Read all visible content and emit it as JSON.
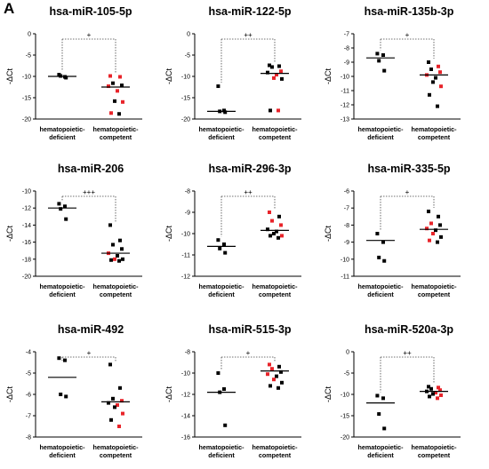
{
  "panel_label": "A",
  "chart_data": [
    {
      "type": "scatter",
      "title": "hsa-miR-105-5p",
      "ylabel": "-ΔCt",
      "ylim": [
        -20,
        0
      ],
      "yticks": [
        0,
        -5,
        -10,
        -15,
        -20
      ],
      "categories": [
        "hematopoietic-\ndeficient",
        "hematopoietic-\ncompetent"
      ],
      "significance": "+",
      "groups": [
        {
          "mean": -10.0,
          "points": [
            {
              "y": -9.6,
              "c": "black"
            },
            {
              "y": -10.1,
              "c": "black"
            },
            {
              "y": -9.9,
              "c": "black"
            },
            {
              "y": -10.3,
              "c": "black"
            }
          ]
        },
        {
          "mean": -12.5,
          "points": [
            {
              "y": -9.9,
              "c": "red"
            },
            {
              "y": -10.1,
              "c": "red"
            },
            {
              "y": -11.6,
              "c": "black"
            },
            {
              "y": -12.1,
              "c": "black"
            },
            {
              "y": -12.3,
              "c": "red"
            },
            {
              "y": -13.4,
              "c": "red"
            },
            {
              "y": -15.8,
              "c": "black"
            },
            {
              "y": -16.0,
              "c": "red"
            },
            {
              "y": -18.6,
              "c": "red"
            },
            {
              "y": -18.8,
              "c": "black"
            }
          ]
        }
      ]
    },
    {
      "type": "scatter",
      "title": "hsa-miR-122-5p",
      "ylabel": "-ΔCt",
      "ylim": [
        -20,
        0
      ],
      "yticks": [
        0,
        -5,
        -10,
        -15,
        -20
      ],
      "categories": [
        "hematopoietic-\ndeficient",
        "hematopoietic-\ncompetent"
      ],
      "significance": "++",
      "groups": [
        {
          "mean": -18.2,
          "points": [
            {
              "y": -12.3,
              "c": "black"
            },
            {
              "y": -18.0,
              "c": "black"
            },
            {
              "y": -18.2,
              "c": "black"
            },
            {
              "y": -18.4,
              "c": "black"
            }
          ]
        },
        {
          "mean": -9.3,
          "points": [
            {
              "y": -7.4,
              "c": "black"
            },
            {
              "y": -7.6,
              "c": "black"
            },
            {
              "y": -7.8,
              "c": "black"
            },
            {
              "y": -8.8,
              "c": "red"
            },
            {
              "y": -9.1,
              "c": "black"
            },
            {
              "y": -9.6,
              "c": "red"
            },
            {
              "y": -10.4,
              "c": "red"
            },
            {
              "y": -10.6,
              "c": "black"
            },
            {
              "y": -18.0,
              "c": "black"
            },
            {
              "y": -18.0,
              "c": "red"
            }
          ]
        }
      ]
    },
    {
      "type": "scatter",
      "title": "hsa-miR-135b-3p",
      "ylabel": "-ΔCt",
      "ylim": [
        -13,
        -7
      ],
      "yticks": [
        -7,
        -8,
        -9,
        -10,
        -11,
        -12,
        -13
      ],
      "categories": [
        "hematopoietic-\ndeficient",
        "hematopoietic-\ncompetent"
      ],
      "significance": "+",
      "groups": [
        {
          "mean": -8.7,
          "points": [
            {
              "y": -8.4,
              "c": "black"
            },
            {
              "y": -8.5,
              "c": "black"
            },
            {
              "y": -8.9,
              "c": "black"
            },
            {
              "y": -9.6,
              "c": "black"
            }
          ]
        },
        {
          "mean": -9.9,
          "points": [
            {
              "y": -9.0,
              "c": "black"
            },
            {
              "y": -9.3,
              "c": "red"
            },
            {
              "y": -9.5,
              "c": "black"
            },
            {
              "y": -9.7,
              "c": "red"
            },
            {
              "y": -9.9,
              "c": "red"
            },
            {
              "y": -10.1,
              "c": "black"
            },
            {
              "y": -10.4,
              "c": "black"
            },
            {
              "y": -10.7,
              "c": "red"
            },
            {
              "y": -11.3,
              "c": "black"
            },
            {
              "y": -12.1,
              "c": "black"
            }
          ]
        }
      ]
    },
    {
      "type": "scatter",
      "title": "hsa-miR-206",
      "ylabel": "-ΔCt",
      "ylim": [
        -20,
        -10
      ],
      "yticks": [
        -10,
        -12,
        -14,
        -16,
        -18,
        -20
      ],
      "categories": [
        "hematopoietic-\ndeficient",
        "hematopoietic-\ncompetent"
      ],
      "significance": "+++",
      "groups": [
        {
          "mean": -12.0,
          "points": [
            {
              "y": -11.5,
              "c": "black"
            },
            {
              "y": -11.8,
              "c": "black"
            },
            {
              "y": -12.1,
              "c": "black"
            },
            {
              "y": -13.3,
              "c": "black"
            }
          ]
        },
        {
          "mean": -17.3,
          "points": [
            {
              "y": -14.0,
              "c": "black"
            },
            {
              "y": -15.8,
              "c": "black"
            },
            {
              "y": -16.3,
              "c": "black"
            },
            {
              "y": -16.8,
              "c": "black"
            },
            {
              "y": -17.3,
              "c": "red"
            },
            {
              "y": -17.6,
              "c": "black"
            },
            {
              "y": -18.0,
              "c": "red"
            },
            {
              "y": -18.0,
              "c": "black"
            },
            {
              "y": -18.1,
              "c": "black"
            },
            {
              "y": -18.2,
              "c": "black"
            }
          ]
        }
      ]
    },
    {
      "type": "scatter",
      "title": "hsa-miR-296-3p",
      "ylabel": "-ΔCt",
      "ylim": [
        -12,
        -8
      ],
      "yticks": [
        -8,
        -9,
        -10,
        -11,
        -12
      ],
      "categories": [
        "hematopoietic-\ndeficient",
        "hematopoietic-\ncompetent"
      ],
      "significance": "++",
      "groups": [
        {
          "mean": -10.6,
          "points": [
            {
              "y": -10.3,
              "c": "black"
            },
            {
              "y": -10.5,
              "c": "black"
            },
            {
              "y": -10.7,
              "c": "black"
            },
            {
              "y": -10.9,
              "c": "black"
            }
          ]
        },
        {
          "mean": -9.85,
          "points": [
            {
              "y": -9.0,
              "c": "red"
            },
            {
              "y": -9.2,
              "c": "black"
            },
            {
              "y": -9.4,
              "c": "red"
            },
            {
              "y": -9.6,
              "c": "red"
            },
            {
              "y": -9.8,
              "c": "black"
            },
            {
              "y": -9.9,
              "c": "black"
            },
            {
              "y": -10.0,
              "c": "black"
            },
            {
              "y": -10.1,
              "c": "red"
            },
            {
              "y": -10.1,
              "c": "black"
            },
            {
              "y": -10.2,
              "c": "black"
            }
          ]
        }
      ]
    },
    {
      "type": "scatter",
      "title": "hsa-miR-335-5p",
      "ylabel": "-ΔCt",
      "ylim": [
        -11,
        -6
      ],
      "yticks": [
        -6,
        -7,
        -8,
        -9,
        -10,
        -11
      ],
      "categories": [
        "hematopoietic-\ndeficient",
        "hematopoietic-\ncompetent"
      ],
      "significance": "+",
      "groups": [
        {
          "mean": -8.9,
          "points": [
            {
              "y": -8.5,
              "c": "black"
            },
            {
              "y": -9.0,
              "c": "black"
            },
            {
              "y": -9.9,
              "c": "black"
            },
            {
              "y": -10.1,
              "c": "black"
            }
          ]
        },
        {
          "mean": -8.25,
          "points": [
            {
              "y": -7.2,
              "c": "black"
            },
            {
              "y": -7.5,
              "c": "black"
            },
            {
              "y": -7.9,
              "c": "red"
            },
            {
              "y": -8.0,
              "c": "black"
            },
            {
              "y": -8.2,
              "c": "red"
            },
            {
              "y": -8.3,
              "c": "black"
            },
            {
              "y": -8.5,
              "c": "red"
            },
            {
              "y": -8.7,
              "c": "black"
            },
            {
              "y": -8.9,
              "c": "red"
            },
            {
              "y": -9.0,
              "c": "black"
            }
          ]
        }
      ]
    },
    {
      "type": "scatter",
      "title": "hsa-miR-492",
      "ylabel": "-ΔCt",
      "ylim": [
        -8,
        -4
      ],
      "yticks": [
        -4,
        -5,
        -6,
        -7,
        -8
      ],
      "categories": [
        "hematopoietic-\ndeficient",
        "hematopoietic-\ncompetent"
      ],
      "significance": "+",
      "groups": [
        {
          "mean": -5.2,
          "points": [
            {
              "y": -4.3,
              "c": "black"
            },
            {
              "y": -4.4,
              "c": "black"
            },
            {
              "y": -6.0,
              "c": "black"
            },
            {
              "y": -6.1,
              "c": "black"
            }
          ]
        },
        {
          "mean": -6.35,
          "points": [
            {
              "y": -4.6,
              "c": "black"
            },
            {
              "y": -5.7,
              "c": "black"
            },
            {
              "y": -6.2,
              "c": "black"
            },
            {
              "y": -6.3,
              "c": "red"
            },
            {
              "y": -6.4,
              "c": "black"
            },
            {
              "y": -6.5,
              "c": "red"
            },
            {
              "y": -6.6,
              "c": "black"
            },
            {
              "y": -6.9,
              "c": "red"
            },
            {
              "y": -7.2,
              "c": "black"
            },
            {
              "y": -7.5,
              "c": "red"
            }
          ]
        }
      ]
    },
    {
      "type": "scatter",
      "title": "hsa-miR-515-3p",
      "ylabel": "-ΔCt",
      "ylim": [
        -16,
        -8
      ],
      "yticks": [
        -8,
        -10,
        -12,
        -14,
        -16
      ],
      "categories": [
        "hematopoietic-\ndeficient",
        "hematopoietic-\ncompetent"
      ],
      "significance": "+",
      "groups": [
        {
          "mean": -11.8,
          "points": [
            {
              "y": -10.0,
              "c": "black"
            },
            {
              "y": -11.5,
              "c": "black"
            },
            {
              "y": -11.8,
              "c": "black"
            },
            {
              "y": -14.9,
              "c": "black"
            }
          ]
        },
        {
          "mean": -9.8,
          "points": [
            {
              "y": -9.2,
              "c": "red"
            },
            {
              "y": -9.4,
              "c": "black"
            },
            {
              "y": -9.6,
              "c": "red"
            },
            {
              "y": -9.9,
              "c": "black"
            },
            {
              "y": -10.1,
              "c": "red"
            },
            {
              "y": -10.3,
              "c": "black"
            },
            {
              "y": -10.6,
              "c": "red"
            },
            {
              "y": -10.9,
              "c": "black"
            },
            {
              "y": -11.2,
              "c": "black"
            },
            {
              "y": -11.4,
              "c": "black"
            }
          ]
        }
      ]
    },
    {
      "type": "scatter",
      "title": "hsa-miR-520a-3p",
      "ylabel": "-ΔCt",
      "ylim": [
        -20,
        0
      ],
      "yticks": [
        0,
        -5,
        -10,
        -15,
        -20
      ],
      "categories": [
        "hematopoietic-\ndeficient",
        "hematopoietic-\ncompetent"
      ],
      "significance": "++",
      "groups": [
        {
          "mean": -12.0,
          "points": [
            {
              "y": -10.3,
              "c": "black"
            },
            {
              "y": -10.9,
              "c": "black"
            },
            {
              "y": -14.6,
              "c": "black"
            },
            {
              "y": -18.0,
              "c": "black"
            }
          ]
        },
        {
          "mean": -9.3,
          "points": [
            {
              "y": -8.2,
              "c": "black"
            },
            {
              "y": -8.4,
              "c": "red"
            },
            {
              "y": -8.7,
              "c": "black"
            },
            {
              "y": -9.0,
              "c": "red"
            },
            {
              "y": -9.3,
              "c": "black"
            },
            {
              "y": -9.6,
              "c": "red"
            },
            {
              "y": -9.9,
              "c": "black"
            },
            {
              "y": -10.2,
              "c": "red"
            },
            {
              "y": -10.5,
              "c": "black"
            },
            {
              "y": -10.9,
              "c": "red"
            }
          ]
        }
      ]
    }
  ]
}
